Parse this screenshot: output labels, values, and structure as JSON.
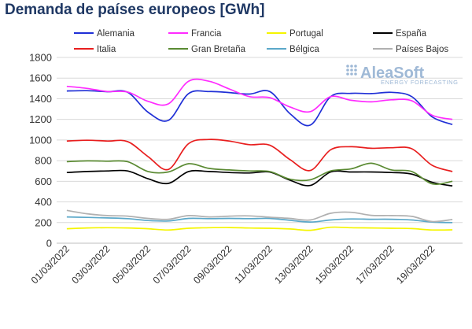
{
  "chart_data": {
    "type": "line",
    "title": "Demanda de países europeos [GWh]",
    "x": [
      "01/03/2022",
      "02/03/2022",
      "03/03/2022",
      "04/03/2022",
      "05/03/2022",
      "06/03/2022",
      "07/03/2022",
      "08/03/2022",
      "09/03/2022",
      "10/03/2022",
      "11/03/2022",
      "12/03/2022",
      "13/03/2022",
      "14/03/2022",
      "15/03/2022",
      "16/03/2022",
      "17/03/2022",
      "18/03/2022",
      "19/03/2022",
      "20/03/2022"
    ],
    "xticks": [
      "01/03/2022",
      "03/03/2022",
      "05/03/2022",
      "07/03/2022",
      "09/03/2022",
      "11/03/2022",
      "13/03/2022",
      "15/03/2022",
      "17/03/2022",
      "19/03/2022"
    ],
    "ylim": [
      0,
      1800
    ],
    "yticks": [
      0,
      200,
      400,
      600,
      800,
      1000,
      1200,
      1400,
      1600,
      1800
    ],
    "grid": "horizontal",
    "legend_position": "top",
    "series": [
      {
        "name": "Alemania",
        "color": "#1f2fd6",
        "values": [
          1475,
          1478,
          1468,
          1462,
          1270,
          1190,
          1450,
          1470,
          1460,
          1445,
          1470,
          1255,
          1145,
          1420,
          1452,
          1450,
          1462,
          1420,
          1225,
          1150
        ]
      },
      {
        "name": "Francia",
        "color": "#ff2bff",
        "values": [
          1520,
          1500,
          1470,
          1465,
          1375,
          1350,
          1570,
          1570,
          1495,
          1420,
          1410,
          1320,
          1275,
          1420,
          1385,
          1370,
          1390,
          1380,
          1240,
          1200
        ]
      },
      {
        "name": "Portugal",
        "color": "#f5f500",
        "values": [
          140,
          148,
          150,
          148,
          140,
          128,
          145,
          150,
          152,
          147,
          145,
          138,
          125,
          155,
          150,
          148,
          145,
          142,
          128,
          130
        ]
      },
      {
        "name": "España",
        "color": "#000000",
        "values": [
          685,
          695,
          700,
          700,
          625,
          580,
          695,
          695,
          685,
          680,
          690,
          610,
          560,
          690,
          690,
          690,
          685,
          670,
          590,
          555
        ]
      },
      {
        "name": "Italia",
        "color": "#e81e1e",
        "values": [
          990,
          998,
          990,
          985,
          840,
          715,
          965,
          1005,
          990,
          955,
          950,
          810,
          705,
          905,
          935,
          920,
          925,
          915,
          755,
          695
        ]
      },
      {
        "name": "Gran Bretaña",
        "color": "#5a8a32",
        "values": [
          790,
          798,
          795,
          790,
          695,
          690,
          770,
          725,
          710,
          700,
          695,
          620,
          615,
          700,
          720,
          775,
          710,
          695,
          575,
          600
        ]
      },
      {
        "name": "Bélgica",
        "color": "#5ba8c9",
        "values": [
          255,
          250,
          245,
          238,
          220,
          215,
          240,
          238,
          240,
          238,
          240,
          222,
          205,
          225,
          235,
          232,
          232,
          225,
          205,
          200
        ]
      },
      {
        "name": "Países Bajos",
        "color": "#b0b0b0",
        "values": [
          318,
          285,
          268,
          262,
          240,
          232,
          268,
          255,
          262,
          265,
          252,
          240,
          225,
          290,
          300,
          270,
          268,
          260,
          210,
          230
        ]
      }
    ]
  },
  "watermark": {
    "brand": "AleaSoft",
    "tagline": "ENERGY FORECASTING"
  }
}
